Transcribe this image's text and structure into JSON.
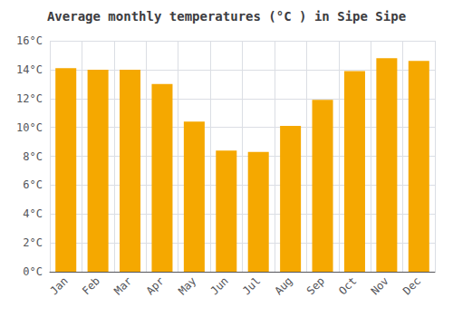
{
  "chart_data": {
    "type": "bar",
    "title": "Average monthly temperatures (°C ) in Sipe Sipe",
    "categories": [
      "Jan",
      "Feb",
      "Mar",
      "Apr",
      "May",
      "Jun",
      "Jul",
      "Aug",
      "Sep",
      "Oct",
      "Nov",
      "Dec"
    ],
    "values": [
      14.1,
      14.0,
      14.0,
      13.0,
      10.4,
      8.4,
      8.3,
      10.1,
      11.9,
      13.9,
      14.8,
      14.6
    ],
    "color": "#F5A800",
    "ylim": [
      0,
      16
    ],
    "yticks": [
      {
        "value": 0,
        "label": "0°C"
      },
      {
        "value": 2,
        "label": "2°C"
      },
      {
        "value": 4,
        "label": "4°C"
      },
      {
        "value": 6,
        "label": "6°C"
      },
      {
        "value": 8,
        "label": "8°C"
      },
      {
        "value": 10,
        "label": "10°C"
      },
      {
        "value": 12,
        "label": "12°C"
      },
      {
        "value": 14,
        "label": "14°C"
      },
      {
        "value": 16,
        "label": "16°C"
      }
    ],
    "grid": true
  }
}
